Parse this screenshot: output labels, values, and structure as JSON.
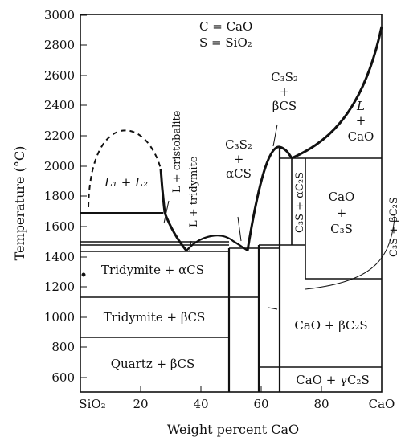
{
  "legend": [
    "C = CaO",
    "S = SiO₂"
  ],
  "axes": {
    "xlabel": "Weight percent CaO",
    "ylabel": "Temperature (°C)",
    "xlim": [
      0,
      100
    ],
    "ylim": [
      500,
      3000
    ],
    "x_ticks": [
      {
        "v": 0,
        "label": "SiO₂"
      },
      {
        "v": 20,
        "label": "20"
      },
      {
        "v": 40,
        "label": "40"
      },
      {
        "v": 60,
        "label": "60"
      },
      {
        "v": 80,
        "label": "80"
      },
      {
        "v": 100,
        "label": "CaO"
      }
    ],
    "y_ticks": [
      600,
      800,
      1000,
      1200,
      1400,
      1600,
      1800,
      2000,
      2200,
      2400,
      2600,
      2800,
      3000
    ]
  },
  "regions": {
    "l1_l2": "L₁ + L₂",
    "l_cristobalite": "L + cristobalite",
    "l_tridymite": "L + tridymite",
    "c3s2_acs": [
      "C₃S₂",
      "+",
      "αCS"
    ],
    "c3s2_bcs": [
      "C₃S₂",
      "+",
      "βCS"
    ],
    "l_cao": [
      "L",
      "+",
      "CaO"
    ],
    "c3s_ac2s": "C₃S + αC₂S",
    "cao_c3s": [
      "CaO",
      "+",
      "C₃S"
    ],
    "c3s_bc2s": "C₃S + βC₂S",
    "tridymite_acs": "Tridymite + αCS",
    "tridymite_bcs": "Tridymite + βCS",
    "quartz_bcs": "Quartz + βCS",
    "cao_bc2s": "CaO + βC₂S",
    "cao_gc2s": "CaO + γC₂S"
  }
}
